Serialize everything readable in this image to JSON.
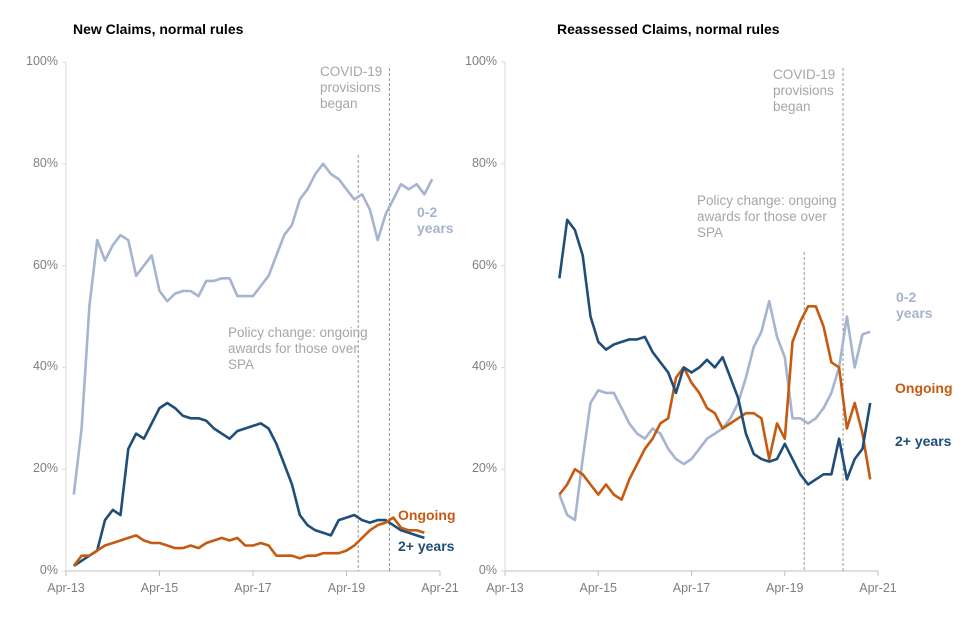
{
  "chart_data": [
    {
      "type": "line",
      "title": "New Claims, normal rules",
      "x": [
        "Jun-13",
        "Aug-13",
        "Oct-13",
        "Dec-13",
        "Feb-14",
        "Apr-14",
        "Jun-14",
        "Aug-14",
        "Oct-14",
        "Dec-14",
        "Feb-15",
        "Apr-15",
        "Jun-15",
        "Aug-15",
        "Oct-15",
        "Dec-15",
        "Feb-16",
        "Apr-16",
        "Jun-16",
        "Aug-16",
        "Oct-16",
        "Dec-16",
        "Feb-17",
        "Apr-17",
        "Jun-17",
        "Aug-17",
        "Oct-17",
        "Dec-17",
        "Feb-18",
        "Apr-18",
        "Jun-18",
        "Aug-18",
        "Oct-18",
        "Dec-18",
        "Feb-19",
        "Apr-19",
        "Jun-19",
        "Aug-19",
        "Oct-19",
        "Dec-19",
        "Feb-20",
        "Apr-20",
        "Jun-20",
        "Aug-20",
        "Oct-20",
        "Dec-20",
        "Feb-21"
      ],
      "series": [
        {
          "name": "0-2 years",
          "color": "#a5b4cf",
          "values": [
            15,
            28,
            52,
            65,
            61,
            64,
            66,
            65,
            58,
            60,
            62,
            55,
            53,
            54.5,
            55,
            55,
            54,
            57,
            57,
            57.5,
            57.5,
            54,
            54,
            54,
            56,
            58,
            62,
            66,
            68,
            73,
            75,
            78,
            80,
            78,
            77,
            75,
            73,
            74,
            71,
            65,
            70,
            73,
            76,
            75,
            76,
            74,
            77
          ]
        },
        {
          "name": "2+ years",
          "color": "#1f4e79",
          "values": [
            1,
            2,
            3,
            4,
            10,
            12,
            11,
            24,
            27,
            26,
            29,
            32,
            33,
            32,
            30.5,
            30,
            30,
            29.5,
            28,
            27,
            26,
            27.5,
            28,
            28.5,
            29,
            28,
            25,
            21,
            17,
            11,
            9,
            8,
            7.5,
            7,
            10,
            10.5,
            11,
            10,
            9.5,
            10,
            10,
            9,
            8,
            7.5,
            7,
            6.5,
            null
          ]
        },
        {
          "name": "Ongoing",
          "color": "#c55a11",
          "values": [
            1,
            3,
            3,
            4,
            5,
            5.5,
            6,
            6.5,
            7,
            6,
            5.5,
            5.5,
            5,
            4.5,
            4.5,
            5,
            4.5,
            5.5,
            6,
            6.5,
            6,
            6.5,
            5,
            5,
            5.5,
            5,
            3,
            3,
            3,
            2.5,
            3,
            3,
            3.5,
            3.5,
            3.5,
            4,
            5,
            6.5,
            8,
            9,
            9.5,
            10.5,
            8.5,
            8,
            8,
            7.5,
            null
          ]
        }
      ],
      "xlim": [
        "Apr-13",
        "Apr-21"
      ],
      "xticks": [
        "Apr-13",
        "Apr-15",
        "Apr-17",
        "Apr-19",
        "Apr-21"
      ],
      "ylim": [
        0,
        100
      ],
      "yticks": [
        {
          "value": 0,
          "label": "0%"
        },
        {
          "value": 20,
          "label": "20%"
        },
        {
          "value": 40,
          "label": "40%"
        },
        {
          "value": 60,
          "label": "60%"
        },
        {
          "value": 80,
          "label": "80%"
        },
        {
          "value": 100,
          "label": "100%"
        }
      ],
      "markers": [
        {
          "x": "Jul-19",
          "label": "Policy change: ongoing awards for those over SPA"
        },
        {
          "x": "Mar-20",
          "label": "COVID-19 provisions began"
        }
      ]
    },
    {
      "type": "line",
      "title": "Reassessed Claims, normal rules",
      "x": [
        "Jun-14",
        "Aug-14",
        "Oct-14",
        "Dec-14",
        "Feb-15",
        "Apr-15",
        "Jun-15",
        "Aug-15",
        "Oct-15",
        "Dec-15",
        "Feb-16",
        "Apr-16",
        "Jun-16",
        "Aug-16",
        "Oct-16",
        "Dec-16",
        "Feb-17",
        "Apr-17",
        "Jun-17",
        "Aug-17",
        "Oct-17",
        "Dec-17",
        "Feb-18",
        "Apr-18",
        "Jun-18",
        "Aug-18",
        "Oct-18",
        "Dec-18",
        "Feb-19",
        "Apr-19",
        "Jun-19",
        "Aug-19",
        "Oct-19",
        "Dec-19",
        "Feb-20",
        "Apr-20",
        "Jun-20",
        "Aug-20",
        "Oct-20",
        "Dec-20",
        "Feb-21"
      ],
      "series": [
        {
          "name": "0-2 years",
          "color": "#a5b4cf",
          "values": [
            15,
            11,
            10,
            22,
            33,
            35.5,
            35,
            35,
            32,
            29,
            27,
            26,
            28,
            27,
            24,
            22,
            21,
            22,
            24,
            26,
            27,
            28,
            30,
            33,
            38,
            44,
            47,
            53,
            46,
            42,
            30,
            30,
            29,
            30,
            32,
            35,
            40,
            50,
            40,
            46.5,
            47
          ]
        },
        {
          "name": "Ongoing",
          "color": "#c55a11",
          "values": [
            15,
            17,
            20,
            19,
            17,
            15,
            17,
            15,
            14,
            18,
            21,
            24,
            26,
            29,
            30,
            38,
            40,
            37,
            35,
            32,
            31,
            28,
            29,
            30,
            31,
            31,
            30,
            22,
            29,
            26,
            45,
            49,
            52,
            52,
            48,
            41,
            40,
            28,
            33,
            27,
            18
          ]
        },
        {
          "name": "2+ years",
          "color": "#1f4e79",
          "values": [
            57.5,
            69,
            67,
            62,
            50,
            45,
            43.5,
            44.5,
            45,
            45.5,
            45.5,
            46,
            43,
            41,
            39,
            35,
            40,
            39,
            40,
            41.5,
            40,
            42,
            38,
            34,
            27,
            23,
            22,
            21.5,
            22,
            25,
            22,
            19,
            17,
            18,
            19,
            19,
            26,
            18,
            22,
            24,
            33
          ]
        }
      ],
      "xlim": [
        "Apr-13",
        "Apr-21"
      ],
      "xticks": [
        "Apr-13",
        "Apr-15",
        "Apr-17",
        "Apr-19",
        "Apr-21"
      ],
      "ylim": [
        0,
        100
      ],
      "yticks": [
        {
          "value": 0,
          "label": "0%"
        },
        {
          "value": 20,
          "label": "20%"
        },
        {
          "value": 40,
          "label": "40%"
        },
        {
          "value": 60,
          "label": "60%"
        },
        {
          "value": 80,
          "label": "80%"
        },
        {
          "value": 100,
          "label": "100%"
        }
      ],
      "markers": [
        {
          "x": "Sep-19",
          "label": "Policy change: ongoing awards for those over SPA"
        },
        {
          "x": "Jul-20",
          "label": "COVID-19 provisions began"
        }
      ]
    }
  ]
}
